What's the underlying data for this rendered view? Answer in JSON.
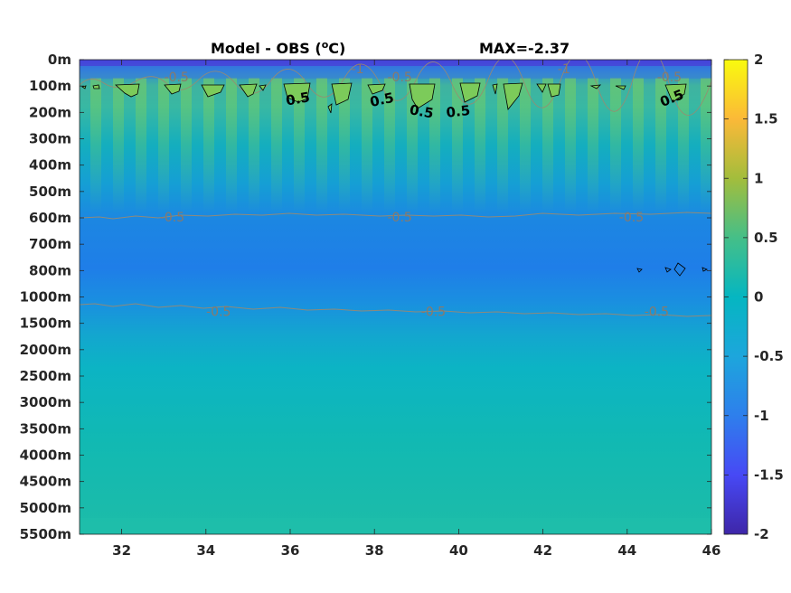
{
  "chart_data": {
    "type": "heatmap",
    "title": "Model - OBS (",
    "title_unit_super": "o",
    "title_unit_tail": "C)",
    "max_label": "MAX=-2.37",
    "x_ticks": [
      "32",
      "34",
      "36",
      "38",
      "40",
      "42",
      "44",
      "46"
    ],
    "x_tick_values": [
      32,
      34,
      36,
      38,
      40,
      42,
      44,
      46
    ],
    "xlim": [
      31,
      46
    ],
    "y_ticks": [
      "0m",
      "100m",
      "200m",
      "300m",
      "400m",
      "500m",
      "600m",
      "700m",
      "800m",
      "1000m",
      "1500m",
      "2000m",
      "2500m",
      "3000m",
      "3500m",
      "4000m",
      "4500m",
      "5000m",
      "5500m"
    ],
    "colorbar": {
      "ticks": [
        "2",
        "1.5",
        "1",
        "0.5",
        "0",
        "-0.5",
        "-1",
        "-1.5",
        "-2"
      ],
      "range": [
        -2,
        2
      ],
      "colormap": "parula"
    },
    "contour_labels_negative": [
      {
        "text": "-0.5",
        "x": 33.3,
        "level": "100m"
      },
      {
        "text": "-1",
        "x": 37.6,
        "level": "0m"
      },
      {
        "text": "-0.5",
        "x": 38.6,
        "level": "100m"
      },
      {
        "text": "-1",
        "x": 42.5,
        "level": "0m"
      },
      {
        "text": "-0.5",
        "x": 45.0,
        "level": "100m"
      },
      {
        "text": "-0.5",
        "x": 33.2,
        "level": "600m"
      },
      {
        "text": "-0.5",
        "x": 38.6,
        "level": "600m"
      },
      {
        "text": "-0.5",
        "x": 44.1,
        "level": "600m"
      },
      {
        "text": "-0.5",
        "x": 34.3,
        "level": "1500m"
      },
      {
        "text": "-0.5",
        "x": 39.4,
        "level": "1500m"
      },
      {
        "text": "-0.5",
        "x": 44.7,
        "level": "1500m"
      }
    ],
    "contour_labels_positive": [
      {
        "text": "0.5",
        "x": 36.2,
        "level": "200m"
      },
      {
        "text": "0.5",
        "x": 38.2,
        "level": "200m"
      },
      {
        "text": "0.5",
        "x": 39.1,
        "level": "200m"
      },
      {
        "text": "0.5",
        "x": 40.0,
        "level": "200m"
      },
      {
        "text": "0.5",
        "x": 45.1,
        "level": "200m"
      }
    ]
  }
}
